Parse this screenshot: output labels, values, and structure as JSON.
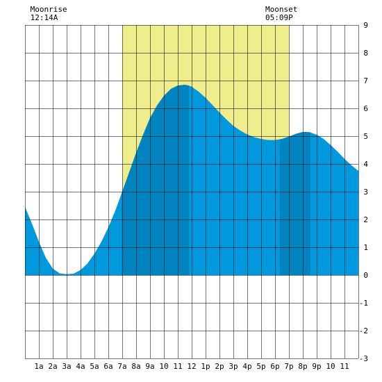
{
  "chart_data": {
    "type": "area",
    "title": "",
    "xlabel": "",
    "ylabel": "",
    "xlim": [
      0,
      24
    ],
    "ylim": [
      -3,
      9
    ],
    "grid": true,
    "x_tick_labels": [
      "1a",
      "2a",
      "3a",
      "4a",
      "5a",
      "6a",
      "7a",
      "8a",
      "9a",
      "10",
      "11",
      "12",
      "1p",
      "2p",
      "3p",
      "4p",
      "5p",
      "6p",
      "7p",
      "8p",
      "9p",
      "10",
      "11"
    ],
    "y_tick_labels": [
      "-3",
      "-2",
      "-1",
      "0",
      "1",
      "2",
      "3",
      "4",
      "5",
      "6",
      "7",
      "8",
      "9"
    ],
    "daylight": {
      "start": 7.0,
      "end": 19.0,
      "color": "#f0ee8c"
    },
    "events": [
      {
        "label": "Moonrise",
        "time": "12:14A",
        "x": 0.23
      },
      {
        "label": "Moonset",
        "time": "05:09P",
        "x": 17.15
      }
    ],
    "dark_bands": [
      [
        6.95,
        11.8
      ],
      [
        18.35,
        20.55
      ]
    ],
    "colors": {
      "tide": "#0099dd",
      "tide_dark": "#0084bf",
      "grid": "#000000"
    },
    "series": [
      {
        "x": [
          0,
          0.5,
          1,
          1.5,
          2,
          2.5,
          3,
          3.5,
          4,
          4.5,
          5,
          5.5,
          6,
          6.5,
          7,
          7.5,
          8,
          8.5,
          9,
          9.5,
          10,
          10.5,
          11,
          11.5,
          11.8,
          12,
          12.5,
          13,
          13.5,
          14,
          14.5,
          15,
          15.5,
          16,
          16.5,
          17,
          17.5,
          18,
          18.5,
          19,
          19.5,
          20,
          20.5,
          21,
          21.5,
          22,
          22.5,
          23,
          23.5,
          24
        ],
        "values": [
          2.45,
          1.85,
          1.2,
          0.62,
          0.23,
          0.06,
          0.03,
          0.05,
          0.18,
          0.42,
          0.77,
          1.2,
          1.72,
          2.32,
          3.0,
          3.7,
          4.4,
          5.05,
          5.65,
          6.1,
          6.45,
          6.7,
          6.82,
          6.85,
          6.82,
          6.78,
          6.6,
          6.38,
          6.12,
          5.85,
          5.6,
          5.37,
          5.2,
          5.06,
          4.96,
          4.9,
          4.86,
          4.86,
          4.9,
          4.98,
          5.08,
          5.15,
          5.14,
          5.05,
          4.9,
          4.68,
          4.44,
          4.18,
          3.95,
          3.75
        ]
      }
    ]
  }
}
